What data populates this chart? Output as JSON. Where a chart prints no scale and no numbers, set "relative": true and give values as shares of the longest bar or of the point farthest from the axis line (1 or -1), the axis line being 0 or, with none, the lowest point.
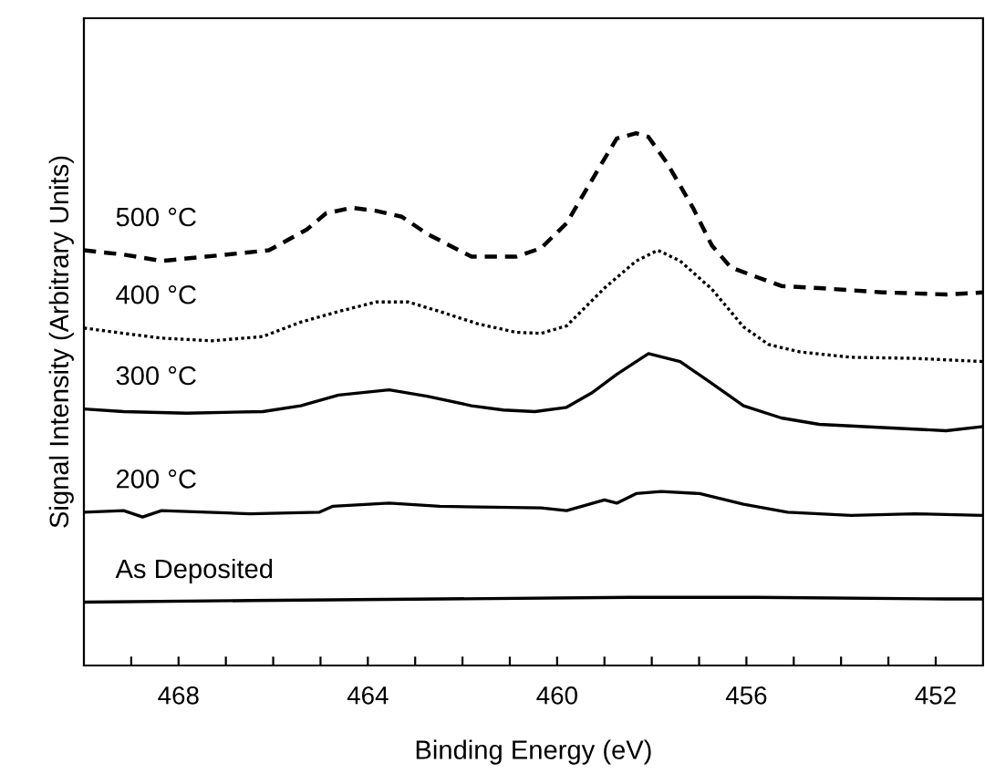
{
  "chart_data": {
    "type": "line",
    "relative": true,
    "xlabel": "Binding Energy (eV)",
    "ylabel": "Signal Intensity (Arbitrary Units)",
    "xlim": [
      470,
      451
    ],
    "xticks": [
      {
        "value": 469,
        "label": null
      },
      468,
      {
        "value": 467,
        "label": null
      },
      {
        "value": 466,
        "label": null
      },
      {
        "value": 465,
        "label": null
      },
      464,
      {
        "value": 463,
        "label": null
      },
      {
        "value": 462,
        "label": null
      },
      {
        "value": 461,
        "label": null
      },
      460,
      {
        "value": 459,
        "label": null
      },
      {
        "value": 458,
        "label": null
      },
      {
        "value": 457,
        "label": null
      },
      456,
      {
        "value": 455,
        "label": null
      },
      {
        "value": 454,
        "label": null
      },
      {
        "value": 453,
        "label": null
      },
      452
    ],
    "grid": false,
    "legend": false,
    "marker": "none",
    "series": [
      {
        "name": "500 °C",
        "color": "#000000",
        "line_style": "dashed",
        "x": [
          470.0,
          469.16,
          468.36,
          467.43,
          466.09,
          465.29,
          464.89,
          464.35,
          463.82,
          463.28,
          462.75,
          461.81,
          460.87,
          460.34,
          459.8,
          459.14,
          458.74,
          458.33,
          458.07,
          457.67,
          457.13,
          456.73,
          456.33,
          455.79,
          455.26,
          454.46,
          453.12,
          451.78,
          451.0
        ],
        "values": [
          0.78,
          0.772,
          0.76,
          0.768,
          0.78,
          0.819,
          0.849,
          0.86,
          0.854,
          0.843,
          0.811,
          0.768,
          0.768,
          0.784,
          0.831,
          0.931,
          0.99,
          1.0,
          0.993,
          0.943,
          0.86,
          0.789,
          0.748,
          0.73,
          0.713,
          0.709,
          0.701,
          0.697,
          0.701
        ]
      },
      {
        "name": "400 °C",
        "color": "#000000",
        "line_style": "dotted",
        "x": [
          470.0,
          469.16,
          468.36,
          467.29,
          466.22,
          465.42,
          464.62,
          463.82,
          463.15,
          462.48,
          461.68,
          460.87,
          460.34,
          459.8,
          459.0,
          458.33,
          457.87,
          457.4,
          456.73,
          456.06,
          455.53,
          454.86,
          453.79,
          452.45,
          451.0
        ],
        "values": [
          0.634,
          0.624,
          0.615,
          0.61,
          0.618,
          0.645,
          0.665,
          0.683,
          0.683,
          0.665,
          0.642,
          0.626,
          0.624,
          0.638,
          0.709,
          0.76,
          0.78,
          0.76,
          0.707,
          0.636,
          0.603,
          0.589,
          0.579,
          0.577,
          0.571
        ]
      },
      {
        "name": "300 °C",
        "color": "#000000",
        "line_style": "solid",
        "x": [
          470.0,
          469.16,
          467.83,
          466.22,
          465.42,
          464.62,
          463.55,
          462.75,
          461.81,
          461.14,
          460.47,
          459.8,
          459.27,
          458.74,
          458.07,
          457.4,
          456.73,
          456.06,
          455.26,
          454.46,
          453.12,
          451.78,
          451.0
        ],
        "values": [
          0.482,
          0.477,
          0.474,
          0.477,
          0.488,
          0.508,
          0.518,
          0.506,
          0.488,
          0.48,
          0.477,
          0.485,
          0.512,
          0.547,
          0.586,
          0.571,
          0.53,
          0.488,
          0.465,
          0.453,
          0.447,
          0.441,
          0.449
        ]
      },
      {
        "name": "200 °C",
        "color": "#000000",
        "line_style": "solid",
        "x": [
          470.0,
          469.16,
          468.76,
          468.36,
          466.49,
          465.02,
          464.75,
          463.55,
          462.48,
          460.34,
          459.8,
          459.0,
          458.74,
          458.33,
          457.8,
          456.99,
          456.06,
          455.13,
          453.79,
          452.45,
          451.0
        ],
        "values": [
          0.288,
          0.291,
          0.279,
          0.291,
          0.285,
          0.288,
          0.299,
          0.305,
          0.299,
          0.296,
          0.291,
          0.311,
          0.305,
          0.323,
          0.327,
          0.323,
          0.303,
          0.288,
          0.282,
          0.285,
          0.282
        ]
      },
      {
        "name": "As Deposited",
        "color": "#000000",
        "line_style": "solid",
        "x": [
          470.0,
          466.49,
          462.48,
          458.47,
          455.79,
          451.78,
          451.0
        ],
        "values": [
          0.119,
          0.122,
          0.125,
          0.128,
          0.128,
          0.125,
          0.125
        ]
      }
    ]
  }
}
